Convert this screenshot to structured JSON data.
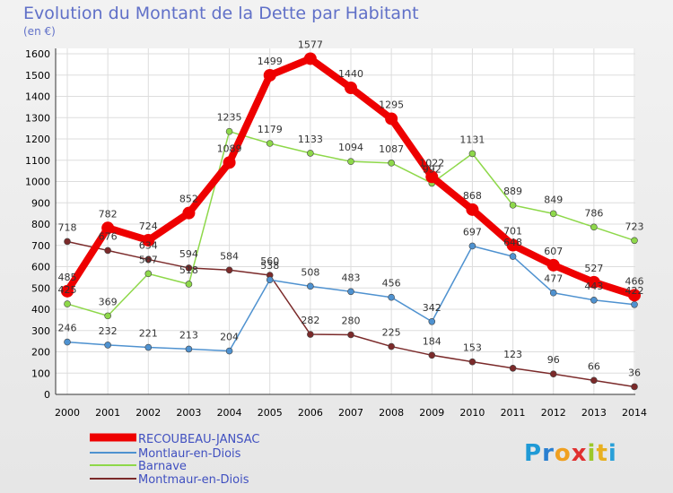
{
  "title": "Evolution du Montant de la Dette par Habitant",
  "unit": "(en €)",
  "logo": [
    "P",
    "r",
    "o",
    "x",
    "i",
    "t",
    "i"
  ],
  "logo_colors": [
    "#1f9ad6",
    "#2a7fd0",
    "#f0a020",
    "#e03030",
    "#9cc82a",
    "#e8b020",
    "#2aa0d8"
  ],
  "chart_data": {
    "type": "line",
    "x": [
      "2000",
      "2001",
      "2002",
      "2003",
      "2004",
      "2005",
      "2006",
      "2007",
      "2008",
      "2009",
      "2010",
      "2011",
      "2012",
      "2013",
      "2014"
    ],
    "y_ticks": [
      0,
      100,
      200,
      300,
      400,
      500,
      600,
      700,
      800,
      900,
      1000,
      1100,
      1200,
      1300,
      1400,
      1500,
      1600
    ],
    "ylim": [
      0,
      1600
    ],
    "grid": true,
    "legend_position": "bottom-left",
    "series": [
      {
        "name": "Montmaur-en-Diois",
        "color": "#7b2a2a",
        "values": [
          718,
          676,
          634,
          594,
          584,
          560,
          282,
          280,
          225,
          184,
          153,
          123,
          96,
          66,
          36
        ],
        "labels": [
          "718",
          "676",
          "634",
          "594",
          "584",
          "560",
          "282",
          "280",
          "225",
          "184",
          "153",
          "123",
          "96",
          "66",
          "36"
        ]
      },
      {
        "name": "Barnave",
        "color": "#8ed84a",
        "values": [
          425,
          369,
          567,
          518,
          1235,
          1179,
          1133,
          1094,
          1087,
          992,
          1131,
          889,
          849,
          786,
          723
        ],
        "labels": [
          "425",
          "369",
          "567",
          "518",
          "1235",
          "1179",
          "1133",
          "1094",
          "1087",
          "992",
          "1131",
          "889",
          "849",
          "786",
          "723"
        ]
      },
      {
        "name": "Montlaur-en-Diois",
        "color": "#4f92d0",
        "values": [
          246,
          232,
          221,
          213,
          204,
          538,
          508,
          483,
          456,
          342,
          697,
          648,
          477,
          443,
          422
        ],
        "labels": [
          "246",
          "232",
          "221",
          "213",
          "204",
          "538",
          "508",
          "483",
          "456",
          "342",
          "697",
          "648",
          "477",
          "443",
          "422"
        ]
      },
      {
        "name": "RECOUBEAU-JANSAC",
        "color": "#ee0000",
        "values": [
          485,
          782,
          724,
          852,
          1089,
          1499,
          1577,
          1440,
          1295,
          1022,
          868,
          701,
          607,
          527,
          466
        ],
        "labels": [
          "485",
          "782",
          "724",
          "852",
          "1089",
          "1499",
          "1577",
          "1440",
          "1295",
          "1022",
          "868",
          "701",
          "607",
          "527",
          "466"
        ]
      }
    ],
    "legend": [
      "RECOUBEAU-JANSAC",
      "Montlaur-en-Diois",
      "Barnave",
      "Montmaur-en-Diois"
    ]
  }
}
